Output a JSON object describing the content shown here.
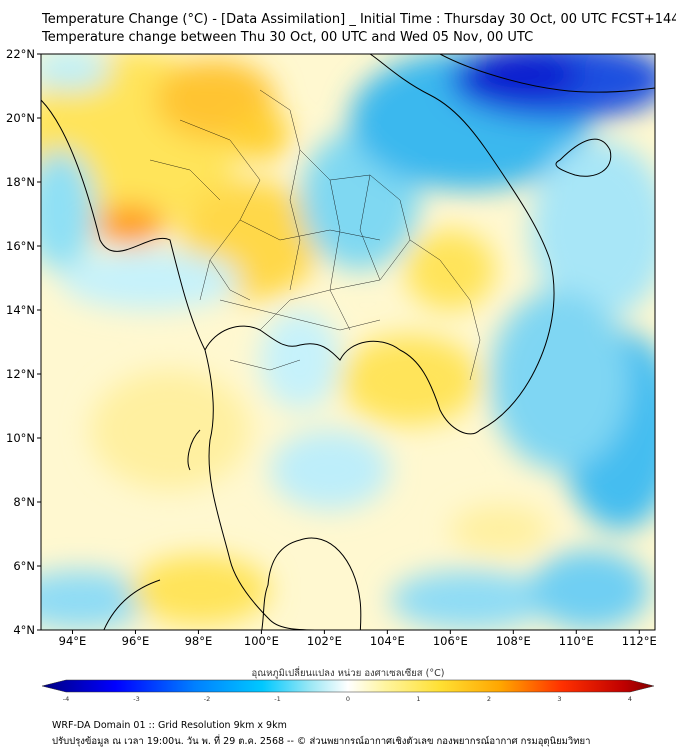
{
  "title": {
    "line1": "Temperature Change (°C) - [Data Assimilation] _ Initial Time : Thursday 30 Oct, 00 UTC FCST+144",
    "line2": "Temperature change between Thu 30 Oct, 00 UTC and Wed 05 Nov, 00 UTC"
  },
  "axes": {
    "lat_labels": [
      "22°N",
      "20°N",
      "18°N",
      "16°N",
      "14°N",
      "12°N",
      "10°N",
      "8°N",
      "6°N",
      "4°N"
    ],
    "lon_labels": [
      "94°E",
      "96°E",
      "98°E",
      "100°E",
      "102°E",
      "104°E",
      "106°E",
      "108°E",
      "110°E",
      "112°E"
    ],
    "lat_range": [
      4,
      22
    ],
    "lon_range": [
      93,
      112.5
    ]
  },
  "colorbar": {
    "label": "อุณหภูมิเปลี่ยนแปลง หน่วย องศาเซลเซียส (°C)",
    "ticks": [
      "-4",
      "-3",
      "-2",
      "-1",
      "0",
      "1",
      "2",
      "3",
      "4"
    ],
    "range": [
      -4,
      4
    ],
    "colors": {
      "min": "#000080",
      "c1": "#0000ff",
      "c2": "#00bfff",
      "c3": "#9ee8f5",
      "zero": "#ffffff",
      "c5": "#fff07a",
      "c6": "#ffcf33",
      "c7": "#ff6a00",
      "c8": "#ff0000",
      "max": "#800000"
    }
  },
  "footer": {
    "line1": "WRF-DA Domain 01 :: Grid Resolution 9km x 9km",
    "line2": "ปรับปรุงข้อมูล ณ เวลา 19:00น. วัน พ. ที่ 29 ต.ค. 2568 -- © ส่วนพยากรณ์อากาศเชิงตัวเลข กองพยากรณ์อากาศ กรมอุตุนิยมวิทยา"
  }
}
